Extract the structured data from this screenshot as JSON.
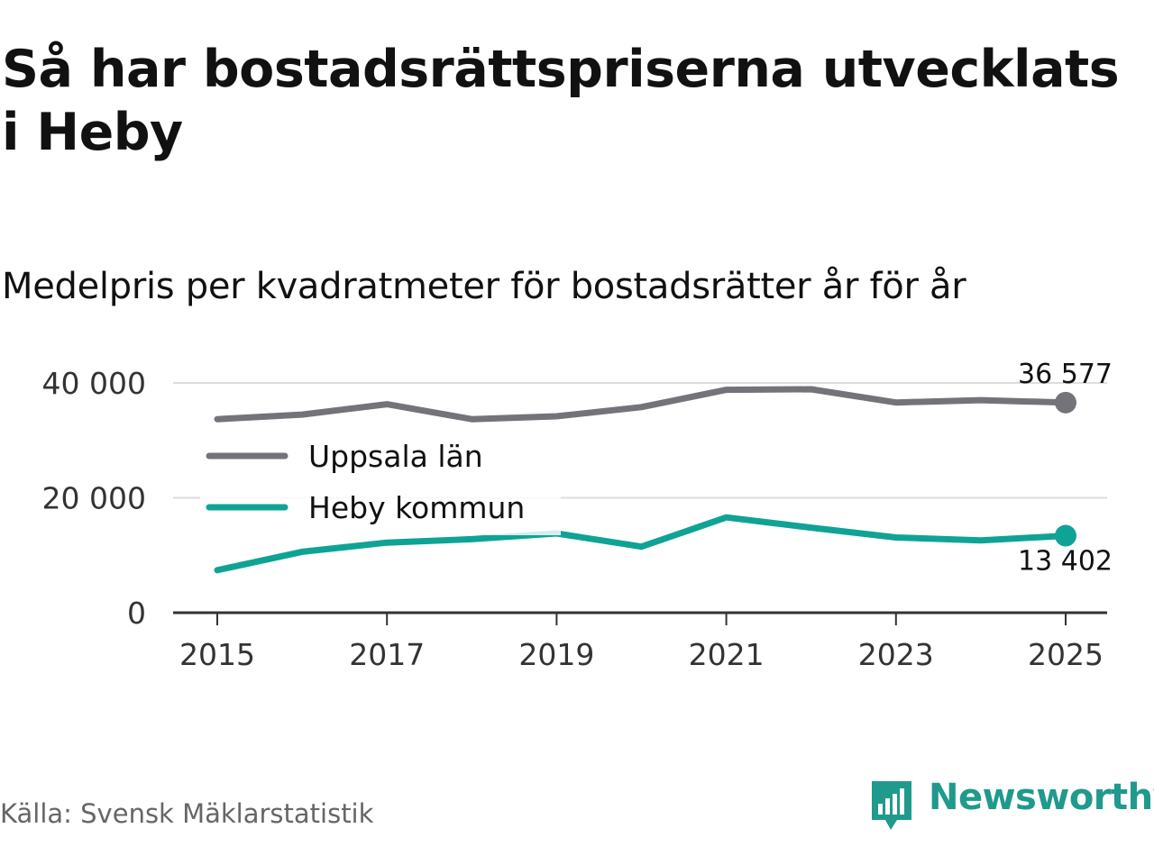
{
  "header": {
    "title": "Så har bostadsrättspriserna utvecklats i Heby",
    "subtitle": "Medelpris per kvadratmeter för bostadsrätter år för år"
  },
  "footer": {
    "source": "Källa: Svensk Mäklarstatistik",
    "brand_name": "Newsworthy",
    "brand_icon": "newsworthy-logo-icon"
  },
  "colors": {
    "uppsala": "#74737a",
    "heby": "#0fa396",
    "grid": "#dddddd",
    "axis": "#333333",
    "brand": "#1f9a8c"
  },
  "chart_data": {
    "type": "line",
    "title": "Så har bostadsrättspriserna utvecklats i Heby",
    "subtitle": "Medelpris per kvadratmeter för bostadsrätter år för år",
    "xlabel": "",
    "ylabel": "",
    "x": [
      2015,
      2016,
      2017,
      2018,
      2019,
      2020,
      2021,
      2022,
      2023,
      2024,
      2025
    ],
    "xlim": [
      2014.5,
      2025.5
    ],
    "ylim": [
      0,
      40000
    ],
    "x_ticks": [
      2015,
      2017,
      2019,
      2021,
      2023,
      2025
    ],
    "x_tick_labels": [
      "2015",
      "2017",
      "2019",
      "2021",
      "2023",
      "2025"
    ],
    "y_ticks": [
      0,
      20000,
      40000
    ],
    "y_tick_labels": [
      "0",
      "20 000",
      "40 000"
    ],
    "grid": true,
    "legend_position": "left-middle",
    "series": [
      {
        "key": "uppsala",
        "name": "Uppsala län",
        "values": [
          33700,
          34500,
          36300,
          33700,
          34200,
          35800,
          38800,
          38900,
          36600,
          37000,
          36577
        ],
        "end_label": "36 577"
      },
      {
        "key": "heby",
        "name": "Heby kommun",
        "values": [
          7400,
          10600,
          12200,
          12800,
          13800,
          11500,
          16600,
          14800,
          13100,
          12600,
          13402
        ],
        "end_label": "13 402"
      }
    ]
  }
}
